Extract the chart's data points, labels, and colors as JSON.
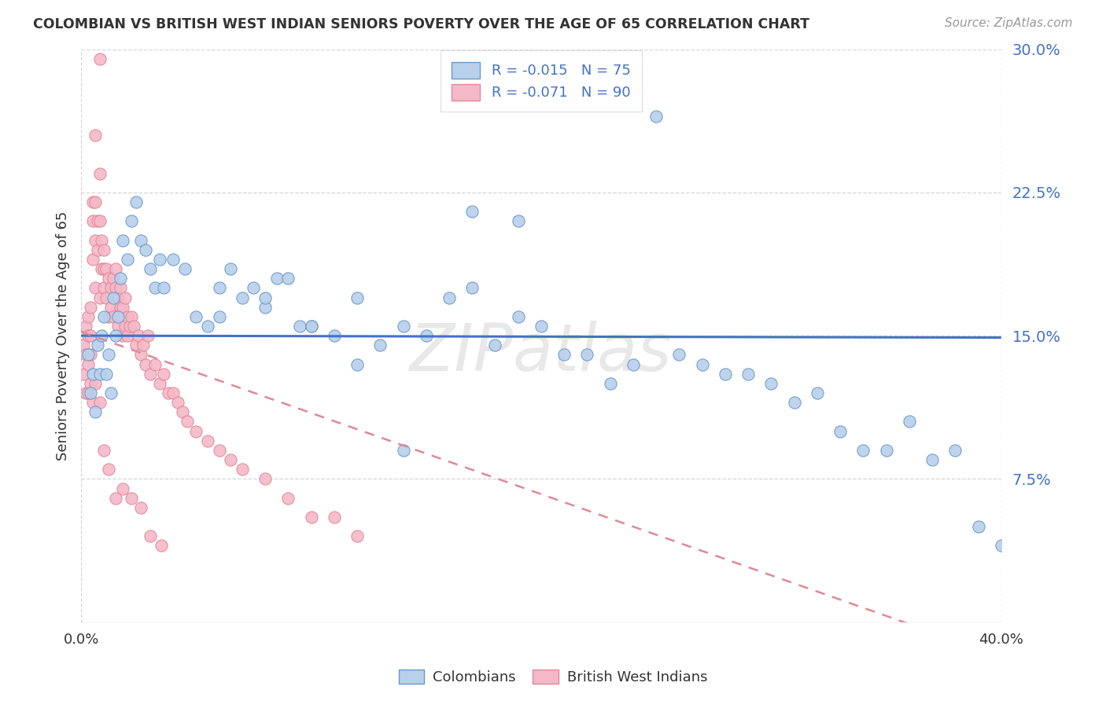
{
  "title": "COLOMBIAN VS BRITISH WEST INDIAN SENIORS POVERTY OVER THE AGE OF 65 CORRELATION CHART",
  "source": "Source: ZipAtlas.com",
  "ylabel": "Seniors Poverty Over the Age of 65",
  "ylim": [
    0,
    0.3
  ],
  "xlim": [
    0,
    0.4
  ],
  "yticks": [
    0.0,
    0.075,
    0.15,
    0.225,
    0.3
  ],
  "ytick_labels": [
    "",
    "7.5%",
    "15.0%",
    "22.5%",
    "30.0%"
  ],
  "colombians_R": "-0.015",
  "colombians_N": "75",
  "bwi_R": "-0.071",
  "bwi_N": "90",
  "color_colombians_fill": "#b8d0ea",
  "color_colombians_edge": "#6699cc",
  "color_bwi_fill": "#f5b8c8",
  "color_bwi_edge": "#e08898",
  "color_colombians_line": "#4472c4",
  "color_bwi_line": "#e08898",
  "watermark": "ZIPatlas",
  "background_color": "#ffffff",
  "legend_r_color": "#e05060",
  "legend_n_color": "#4472c4",
  "colombians_x": [
    0.003,
    0.004,
    0.005,
    0.006,
    0.007,
    0.008,
    0.009,
    0.01,
    0.011,
    0.012,
    0.013,
    0.014,
    0.015,
    0.016,
    0.017,
    0.018,
    0.02,
    0.022,
    0.024,
    0.026,
    0.028,
    0.03,
    0.032,
    0.034,
    0.036,
    0.04,
    0.045,
    0.05,
    0.055,
    0.06,
    0.065,
    0.07,
    0.075,
    0.08,
    0.085,
    0.09,
    0.095,
    0.1,
    0.11,
    0.12,
    0.13,
    0.14,
    0.15,
    0.16,
    0.17,
    0.18,
    0.19,
    0.2,
    0.21,
    0.22,
    0.23,
    0.24,
    0.25,
    0.26,
    0.27,
    0.28,
    0.29,
    0.3,
    0.31,
    0.32,
    0.33,
    0.34,
    0.35,
    0.36,
    0.37,
    0.38,
    0.39,
    0.4,
    0.17,
    0.19,
    0.06,
    0.08,
    0.1,
    0.12,
    0.14
  ],
  "colombians_y": [
    0.14,
    0.12,
    0.13,
    0.11,
    0.145,
    0.13,
    0.15,
    0.16,
    0.13,
    0.14,
    0.12,
    0.17,
    0.15,
    0.16,
    0.18,
    0.2,
    0.19,
    0.21,
    0.22,
    0.2,
    0.195,
    0.185,
    0.175,
    0.19,
    0.175,
    0.19,
    0.185,
    0.16,
    0.155,
    0.175,
    0.185,
    0.17,
    0.175,
    0.165,
    0.18,
    0.18,
    0.155,
    0.155,
    0.15,
    0.17,
    0.145,
    0.155,
    0.15,
    0.17,
    0.175,
    0.145,
    0.16,
    0.155,
    0.14,
    0.14,
    0.125,
    0.135,
    0.265,
    0.14,
    0.135,
    0.13,
    0.13,
    0.125,
    0.115,
    0.12,
    0.1,
    0.09,
    0.09,
    0.105,
    0.085,
    0.09,
    0.05,
    0.04,
    0.215,
    0.21,
    0.16,
    0.17,
    0.155,
    0.135,
    0.09
  ],
  "bwi_x": [
    0.001,
    0.001,
    0.002,
    0.002,
    0.002,
    0.003,
    0.003,
    0.003,
    0.004,
    0.004,
    0.004,
    0.005,
    0.005,
    0.005,
    0.006,
    0.006,
    0.006,
    0.007,
    0.007,
    0.008,
    0.008,
    0.008,
    0.009,
    0.009,
    0.01,
    0.01,
    0.01,
    0.011,
    0.011,
    0.012,
    0.012,
    0.013,
    0.013,
    0.014,
    0.014,
    0.015,
    0.015,
    0.016,
    0.016,
    0.017,
    0.017,
    0.018,
    0.018,
    0.019,
    0.019,
    0.02,
    0.02,
    0.021,
    0.022,
    0.023,
    0.024,
    0.025,
    0.026,
    0.027,
    0.028,
    0.029,
    0.03,
    0.032,
    0.034,
    0.036,
    0.038,
    0.04,
    0.042,
    0.044,
    0.046,
    0.05,
    0.055,
    0.06,
    0.065,
    0.07,
    0.08,
    0.09,
    0.1,
    0.11,
    0.12,
    0.003,
    0.004,
    0.005,
    0.006,
    0.008,
    0.01,
    0.012,
    0.015,
    0.018,
    0.022,
    0.026,
    0.03,
    0.035,
    0.006,
    0.008
  ],
  "bwi_y": [
    0.145,
    0.13,
    0.155,
    0.14,
    0.12,
    0.15,
    0.135,
    0.16,
    0.15,
    0.165,
    0.14,
    0.22,
    0.19,
    0.21,
    0.2,
    0.175,
    0.22,
    0.195,
    0.21,
    0.295,
    0.17,
    0.21,
    0.185,
    0.2,
    0.195,
    0.175,
    0.185,
    0.185,
    0.17,
    0.18,
    0.16,
    0.175,
    0.165,
    0.18,
    0.16,
    0.185,
    0.175,
    0.17,
    0.155,
    0.175,
    0.165,
    0.165,
    0.15,
    0.155,
    0.17,
    0.16,
    0.15,
    0.155,
    0.16,
    0.155,
    0.145,
    0.15,
    0.14,
    0.145,
    0.135,
    0.15,
    0.13,
    0.135,
    0.125,
    0.13,
    0.12,
    0.12,
    0.115,
    0.11,
    0.105,
    0.1,
    0.095,
    0.09,
    0.085,
    0.08,
    0.075,
    0.065,
    0.055,
    0.055,
    0.045,
    0.12,
    0.125,
    0.115,
    0.125,
    0.115,
    0.09,
    0.08,
    0.065,
    0.07,
    0.065,
    0.06,
    0.045,
    0.04,
    0.255,
    0.235
  ]
}
